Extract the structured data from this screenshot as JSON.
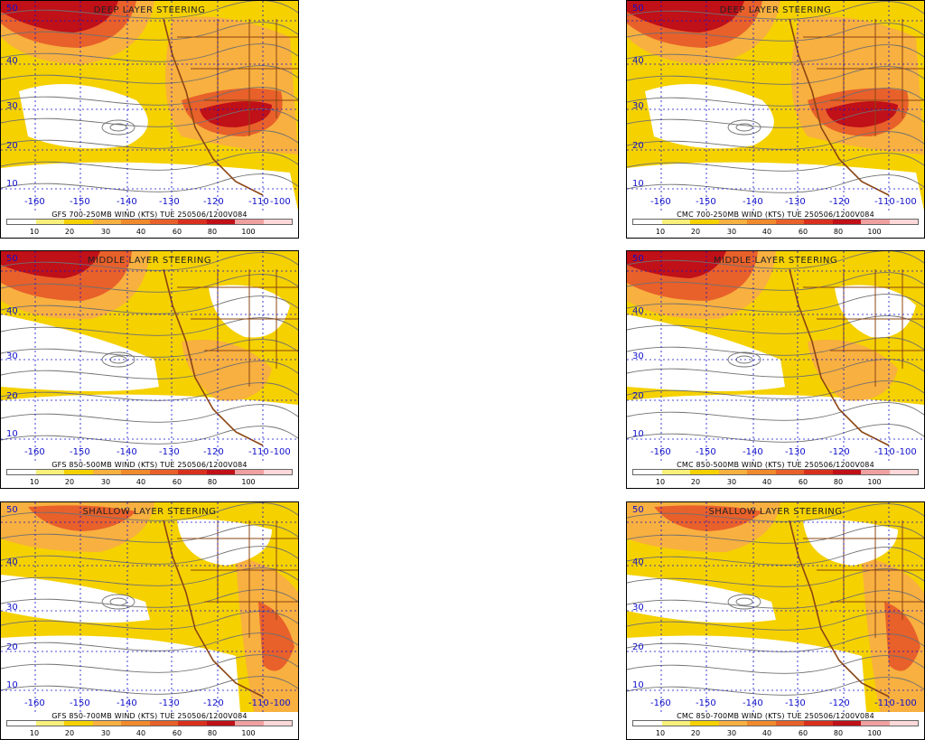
{
  "panels": [
    {
      "id": "gfs-deep",
      "title": "DEEP LAYER STEERING",
      "caption": "GFS 700-250MB WIND (KTS) TUE 250506/1200V084",
      "variant": "deep"
    },
    {
      "id": "cmc-deep",
      "title": "DEEP LAYER STEERING",
      "caption": "CMC 700-250MB WIND (KTS) TUE 250506/1200V084",
      "variant": "deep"
    },
    {
      "id": "gfs-middle",
      "title": "MIDDLE LAYER STEERING",
      "caption": "GFS 850-500MB WIND (KTS) TUE 250506/1200V084",
      "variant": "middle"
    },
    {
      "id": "cmc-middle",
      "title": "MIDDLE LAYER STEERING",
      "caption": "CMC 850-500MB WIND (KTS) TUE 250506/1200V084",
      "variant": "middle"
    },
    {
      "id": "gfs-shallow",
      "title": "SHALLOW LAYER STEERING",
      "caption": "GFS 850-700MB WIND (KTS) TUE 250506/1200V084",
      "variant": "shallow"
    },
    {
      "id": "cmc-shallow",
      "title": "SHALLOW LAYER STEERING",
      "caption": "CMC 850-700MB WIND (KTS) TUE 250506/1200V084",
      "variant": "shallow"
    }
  ],
  "lat_labels": [
    "50",
    "40",
    "30",
    "20",
    "10"
  ],
  "lon_labels": [
    "-160",
    "-150",
    "-140",
    "-130",
    "-120",
    "-110",
    "-100"
  ],
  "colorbar": {
    "ticks": [
      "10",
      "20",
      "30",
      "40",
      "60",
      "80",
      "100"
    ],
    "colors": [
      "#ffffff",
      "#f7f07a",
      "#f5d100",
      "#f8b040",
      "#f08a2c",
      "#e8602a",
      "#d9301e",
      "#c01018",
      "#f0a0a0",
      "#fdd8d8"
    ]
  },
  "map_colors": {
    "band_low": "#f5d100",
    "band_mid": "#f8b040",
    "band_high": "#e8602a",
    "jet": "#c01018",
    "calm": "#ffffff",
    "grid": "#1010cc",
    "border": "#8b4513",
    "stream": "#707070"
  }
}
